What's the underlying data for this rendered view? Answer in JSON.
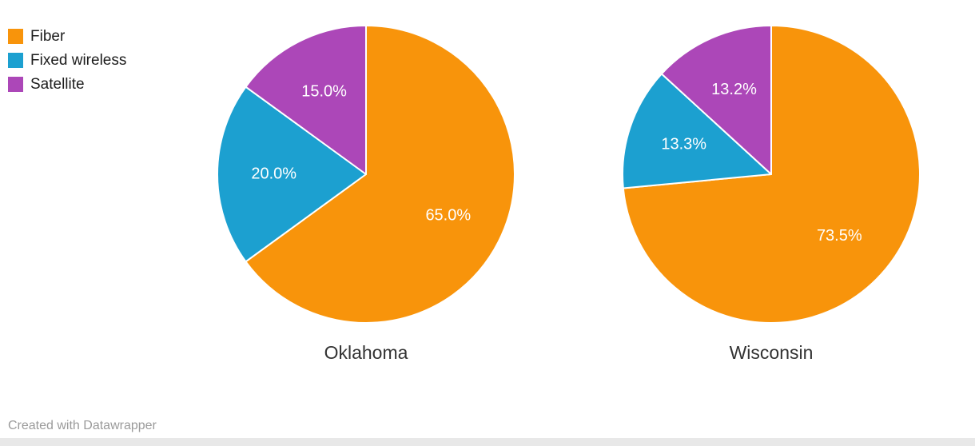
{
  "legend": {
    "items": [
      {
        "label": "Fiber",
        "color": "#F8940B"
      },
      {
        "label": "Fixed wireless",
        "color": "#1CA0D0"
      },
      {
        "label": "Satellite",
        "color": "#AC47B8"
      }
    ]
  },
  "footer": {
    "credit": "Created with Datawrapper"
  },
  "chart_data": [
    {
      "type": "pie",
      "title": "Oklahoma",
      "labels": [
        "Fiber",
        "Fixed wireless",
        "Satellite"
      ],
      "values": [
        65.0,
        20.0,
        15.0
      ],
      "value_labels": [
        "65.0%",
        "20.0%",
        "15.0%"
      ],
      "colors": [
        "#F8940B",
        "#1CA0D0",
        "#AC47B8"
      ],
      "start_angle_deg": 0,
      "direction": "clockwise",
      "label_color": "#ffffff",
      "legend_position": "top-left"
    },
    {
      "type": "pie",
      "title": "Wisconsin",
      "labels": [
        "Fiber",
        "Fixed wireless",
        "Satellite"
      ],
      "values": [
        73.5,
        13.3,
        13.2
      ],
      "value_labels": [
        "73.5%",
        "13.3%",
        "13.2%"
      ],
      "colors": [
        "#F8940B",
        "#1CA0D0",
        "#AC47B8"
      ],
      "start_angle_deg": 0,
      "direction": "clockwise",
      "label_color": "#ffffff",
      "legend_position": "top-left"
    }
  ]
}
